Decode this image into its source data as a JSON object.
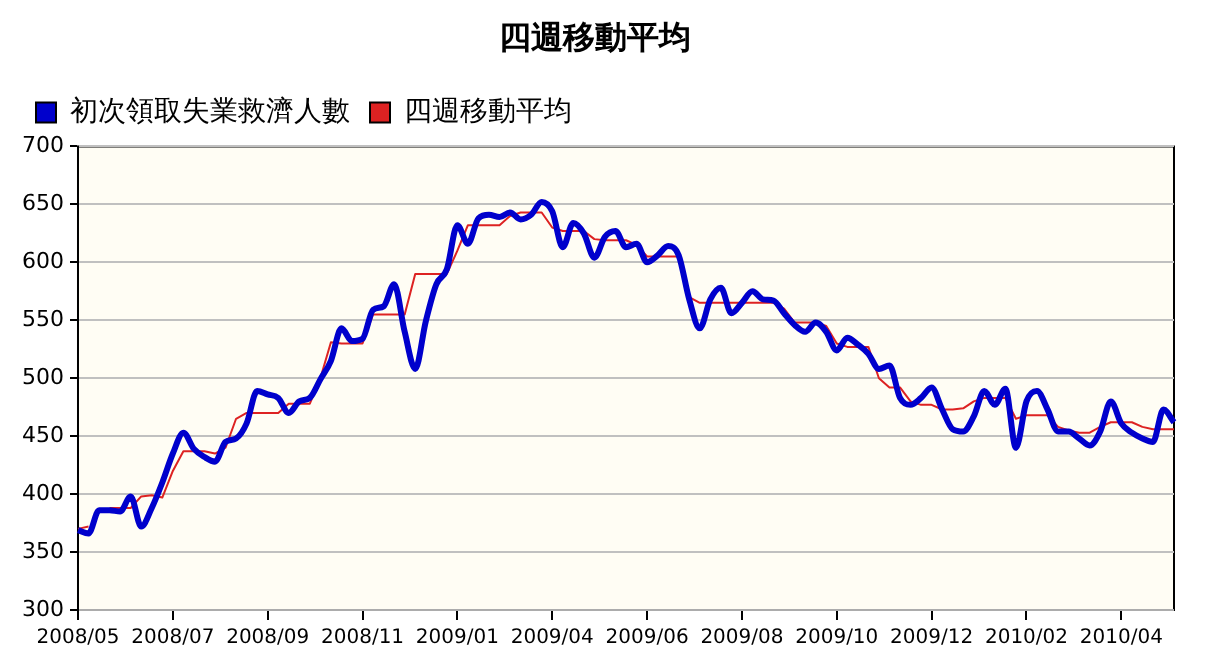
{
  "chart_data": {
    "type": "line",
    "title": "四週移動平均",
    "categories": [
      "2008/05",
      null,
      null,
      null,
      null,
      null,
      null,
      null,
      null,
      "2008/07",
      null,
      null,
      null,
      null,
      null,
      null,
      null,
      null,
      "2008/09",
      null,
      null,
      null,
      null,
      null,
      null,
      null,
      null,
      "2008/11",
      null,
      null,
      null,
      null,
      null,
      null,
      null,
      null,
      "2009/01",
      null,
      null,
      null,
      null,
      null,
      null,
      null,
      null,
      "2009/04",
      null,
      null,
      null,
      null,
      null,
      null,
      null,
      null,
      "2009/06",
      null,
      null,
      null,
      null,
      null,
      null,
      null,
      null,
      "2009/08",
      null,
      null,
      null,
      null,
      null,
      null,
      null,
      null,
      "2009/10",
      null,
      null,
      null,
      null,
      null,
      null,
      null,
      null,
      "2009/12",
      null,
      null,
      null,
      null,
      null,
      null,
      null,
      null,
      "2010/02",
      null,
      null,
      null,
      null,
      null,
      null,
      null,
      null,
      "2010/04",
      null,
      null,
      null,
      null,
      null
    ],
    "series": [
      {
        "name": "初次領取失業救濟人數",
        "color": "#0000cc",
        "values": [
          369,
          366,
          386,
          386,
          385,
          398,
          372,
          388,
          410,
          435,
          453,
          439,
          432,
          428,
          445,
          448,
          461,
          489,
          486,
          483,
          470,
          480,
          483,
          499,
          515,
          543,
          532,
          534,
          559,
          562,
          581,
          540,
          508,
          549,
          581,
          594,
          632,
          616,
          638,
          641,
          639,
          643,
          637,
          641,
          652,
          644,
          613,
          634,
          625,
          604,
          622,
          627,
          613,
          616,
          600,
          606,
          614,
          606,
          568,
          543,
          568,
          578,
          556,
          565,
          575,
          568,
          567,
          556,
          546,
          540,
          548,
          540,
          524,
          535,
          529,
          521,
          508,
          511,
          483,
          477,
          483,
          492,
          473,
          456,
          454,
          467,
          489,
          477,
          491,
          440,
          480,
          489,
          473,
          454,
          454,
          448,
          442,
          454,
          480,
          461,
          453,
          448,
          445,
          473,
          462
        ]
      },
      {
        "name": "四週移動平均",
        "color": "#dd2222",
        "values": [
          370,
          372,
          null,
          388,
          388,
          388,
          398,
          399,
          397,
          420,
          437,
          437,
          437,
          435,
          440,
          465,
          470,
          470,
          470,
          470,
          478,
          478,
          478,
          500,
          531,
          530,
          530,
          530,
          555,
          555,
          555,
          555,
          590,
          590,
          590,
          590,
          610,
          632,
          632,
          632,
          632,
          640,
          643,
          643,
          643,
          630,
          627,
          627,
          627,
          620,
          619,
          619,
          619,
          615,
          605,
          605,
          605,
          605,
          570,
          565,
          565,
          565,
          565,
          565,
          565,
          565,
          565,
          560,
          548,
          548,
          548,
          545,
          530,
          527,
          527,
          527,
          500,
          492,
          492,
          480,
          477,
          477,
          473,
          473,
          474,
          480,
          483,
          483,
          483,
          465,
          468,
          468,
          468,
          458,
          455,
          453,
          453,
          458,
          462,
          462,
          462,
          458,
          456,
          456,
          456
        ]
      }
    ],
    "ylim": [
      300,
      700
    ],
    "yticks": [
      300,
      350,
      400,
      450,
      500,
      550,
      600,
      650,
      700
    ],
    "grid": "y",
    "legend": "top left",
    "marker": "none",
    "line_style": "solid"
  }
}
